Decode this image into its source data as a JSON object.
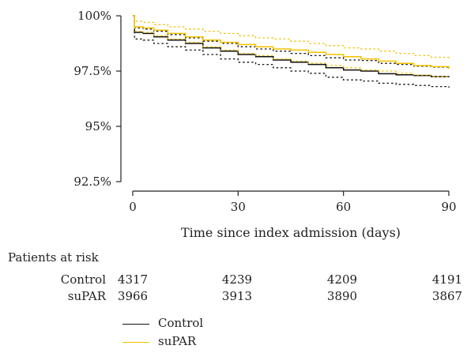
{
  "chart_data": {
    "type": "line",
    "title": "",
    "xlabel": "Time since index admission (days)",
    "ylabel": "",
    "xlim": [
      0,
      90
    ],
    "ylim": [
      92.5,
      100
    ],
    "x_ticks": [
      0,
      30,
      60,
      90
    ],
    "y_ticks": [
      92.5,
      95,
      97.5,
      100
    ],
    "y_tick_labels": [
      "92.5%",
      "95%",
      "97.5%",
      "100%"
    ],
    "grid": false,
    "legend_position": "bottom-left",
    "series": [
      {
        "name": "Control",
        "color": "#111111",
        "x": [
          0,
          0.5,
          3,
          6,
          10,
          15,
          20,
          25,
          30,
          35,
          40,
          45,
          50,
          55,
          60,
          65,
          70,
          75,
          80,
          85,
          90
        ],
        "y": [
          100,
          99.25,
          99.2,
          99.05,
          98.9,
          98.75,
          98.55,
          98.4,
          98.25,
          98.15,
          98.0,
          97.9,
          97.8,
          97.65,
          97.55,
          97.5,
          97.38,
          97.33,
          97.3,
          97.25,
          97.22
        ],
        "ci_upper": [
          100,
          99.45,
          99.4,
          99.3,
          99.15,
          99.0,
          98.85,
          98.75,
          98.6,
          98.5,
          98.4,
          98.3,
          98.2,
          98.1,
          98.0,
          97.98,
          97.85,
          97.8,
          97.72,
          97.68,
          97.65
        ],
        "ci_lower": [
          100,
          98.95,
          98.9,
          98.75,
          98.6,
          98.45,
          98.25,
          98.05,
          97.9,
          97.8,
          97.65,
          97.5,
          97.4,
          97.22,
          97.1,
          97.05,
          96.95,
          96.9,
          96.85,
          96.8,
          96.75
        ]
      },
      {
        "name": "suPAR",
        "color": "#f2c200",
        "x": [
          0,
          0.5,
          3,
          6,
          10,
          15,
          20,
          25,
          30,
          35,
          40,
          45,
          50,
          55,
          60,
          65,
          70,
          75,
          80,
          85,
          90
        ],
        "y": [
          100,
          99.5,
          99.45,
          99.35,
          99.2,
          99.05,
          98.9,
          98.8,
          98.7,
          98.6,
          98.5,
          98.45,
          98.35,
          98.25,
          98.15,
          98.05,
          97.95,
          97.85,
          97.75,
          97.7,
          97.6
        ],
        "ci_upper": [
          100,
          99.75,
          99.7,
          99.6,
          99.5,
          99.4,
          99.3,
          99.2,
          99.1,
          99.0,
          98.95,
          98.85,
          98.75,
          98.65,
          98.55,
          98.5,
          98.4,
          98.3,
          98.2,
          98.12,
          98.05
        ],
        "ci_lower": [
          100,
          99.3,
          99.25,
          99.1,
          98.95,
          98.8,
          98.6,
          98.45,
          98.3,
          98.2,
          98.05,
          97.95,
          97.85,
          97.75,
          97.65,
          97.55,
          97.5,
          97.4,
          97.32,
          97.25,
          97.2
        ]
      }
    ]
  },
  "risk_table": {
    "title": "Patients at risk",
    "rows": [
      {
        "label": "Control",
        "values": [
          "4317",
          "4239",
          "4209",
          "4191"
        ]
      },
      {
        "label": "suPAR",
        "values": [
          "3966",
          "3913",
          "3890",
          "3867"
        ]
      }
    ]
  },
  "legend": [
    {
      "label": "Control",
      "color": "#111111"
    },
    {
      "label": "suPAR",
      "color": "#f2c200"
    }
  ]
}
